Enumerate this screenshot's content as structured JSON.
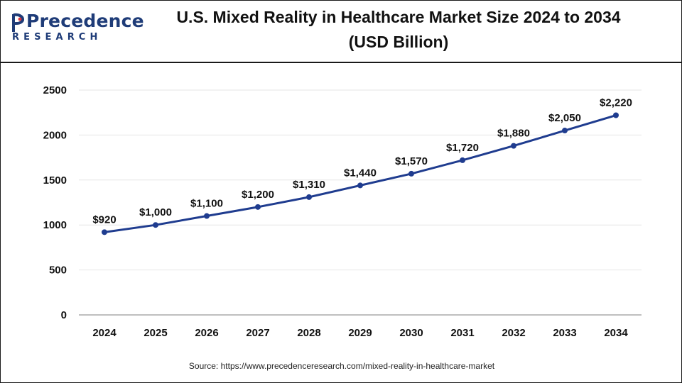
{
  "brand": {
    "name": "Precedence",
    "tagline": "RESEARCH"
  },
  "title_line1": "U.S. Mixed Reality in Healthcare Market Size 2024 to 2034",
  "title_line2": "(USD Billion)",
  "source": "Source: https://www.precedenceresearch.com/mixed-reality-in-healthcare-market",
  "colors": {
    "line": "#1f3c8f",
    "brand": "#1f3c78",
    "grid": "#e6e6e6"
  },
  "chart_data": {
    "type": "line",
    "title": "U.S. Mixed Reality in Healthcare Market Size 2024 to 2034 (USD Billion)",
    "categories": [
      "2024",
      "2025",
      "2026",
      "2027",
      "2028",
      "2029",
      "2030",
      "2031",
      "2032",
      "2033",
      "2034"
    ],
    "values": [
      920,
      1000,
      1100,
      1200,
      1310,
      1440,
      1570,
      1720,
      1880,
      2050,
      2220
    ],
    "labels": [
      "$920",
      "$1,000",
      "$1,100",
      "$1,200",
      "$1,310",
      "$1,440",
      "$1,570",
      "$1,720",
      "$1,880",
      "$2,050",
      "$2,220"
    ],
    "yticks": [
      "0",
      "500",
      "1000",
      "1500",
      "2000",
      "2500"
    ],
    "ylim": [
      0,
      2500
    ],
    "xlabel": "",
    "ylabel": "",
    "grid": true
  }
}
